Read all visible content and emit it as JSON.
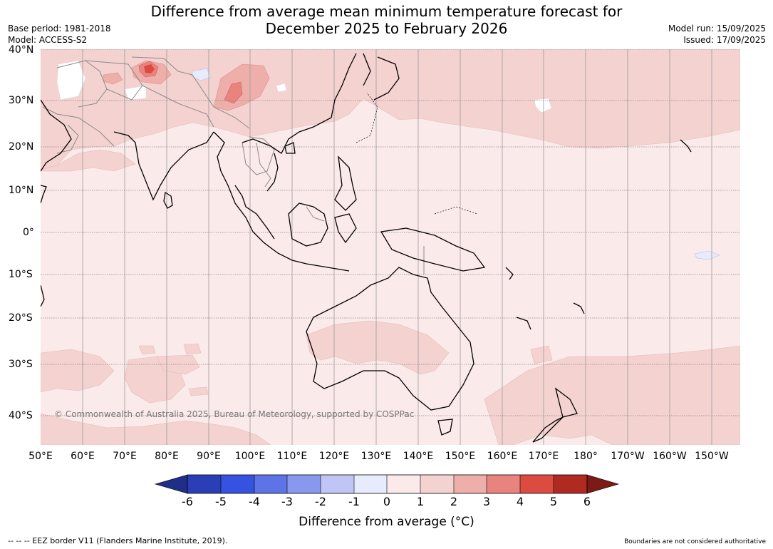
{
  "title_line1": "Difference from average mean minimum temperature forecast for",
  "title_line2": "December 2025 to February 2026",
  "base_period": "Base period: 1981-2018",
  "model": "Model: ACCESS-S2",
  "model_run": "Model run: 15/09/2025",
  "issued": "Issued: 17/09/2025",
  "lat_labels": [
    "40°N",
    "30°N",
    "20°N",
    "10°N",
    "0°",
    "10°S",
    "20°S",
    "30°S",
    "40°S"
  ],
  "lon_labels": [
    "50°E",
    "60°E",
    "70°E",
    "80°E",
    "90°E",
    "100°E",
    "110°E",
    "120°E",
    "130°E",
    "140°E",
    "150°E",
    "160°E",
    "170°E",
    "180°",
    "170°W",
    "160°W",
    "150°W"
  ],
  "copyright": "© Commonwealth of Australia 2025, Bureau of Meteorology, supported by COSPPac",
  "colorbar": {
    "ticks": [
      "-6",
      "-5",
      "-4",
      "-3",
      "-2",
      "-1",
      "0",
      "1",
      "2",
      "3",
      "4",
      "5",
      "6"
    ],
    "colors": [
      "#1f2f87",
      "#2a3fb5",
      "#3552e0",
      "#5d74e6",
      "#8898ee",
      "#bfc6f6",
      "#e8ebfb",
      "#fbeaea",
      "#f4d2d0",
      "#eeaeaa",
      "#e8837d",
      "#db4b40",
      "#b02a22",
      "#7d1a15"
    ],
    "label": "Difference from average (°C)"
  },
  "footer_left": "--  --  -- EEZ border V11 (Flanders Marine Institute, 2019).",
  "footer_right": "Boundaries are not considered authoritative",
  "map_colors": {
    "ocean_base": "#fbeaea",
    "band_1_2": "#f4d2d0",
    "band_2_3": "#eeaeaa",
    "band_3_4": "#e8837d",
    "band_4_5": "#db4b40",
    "cool_0_1": "#e8ebfb"
  }
}
